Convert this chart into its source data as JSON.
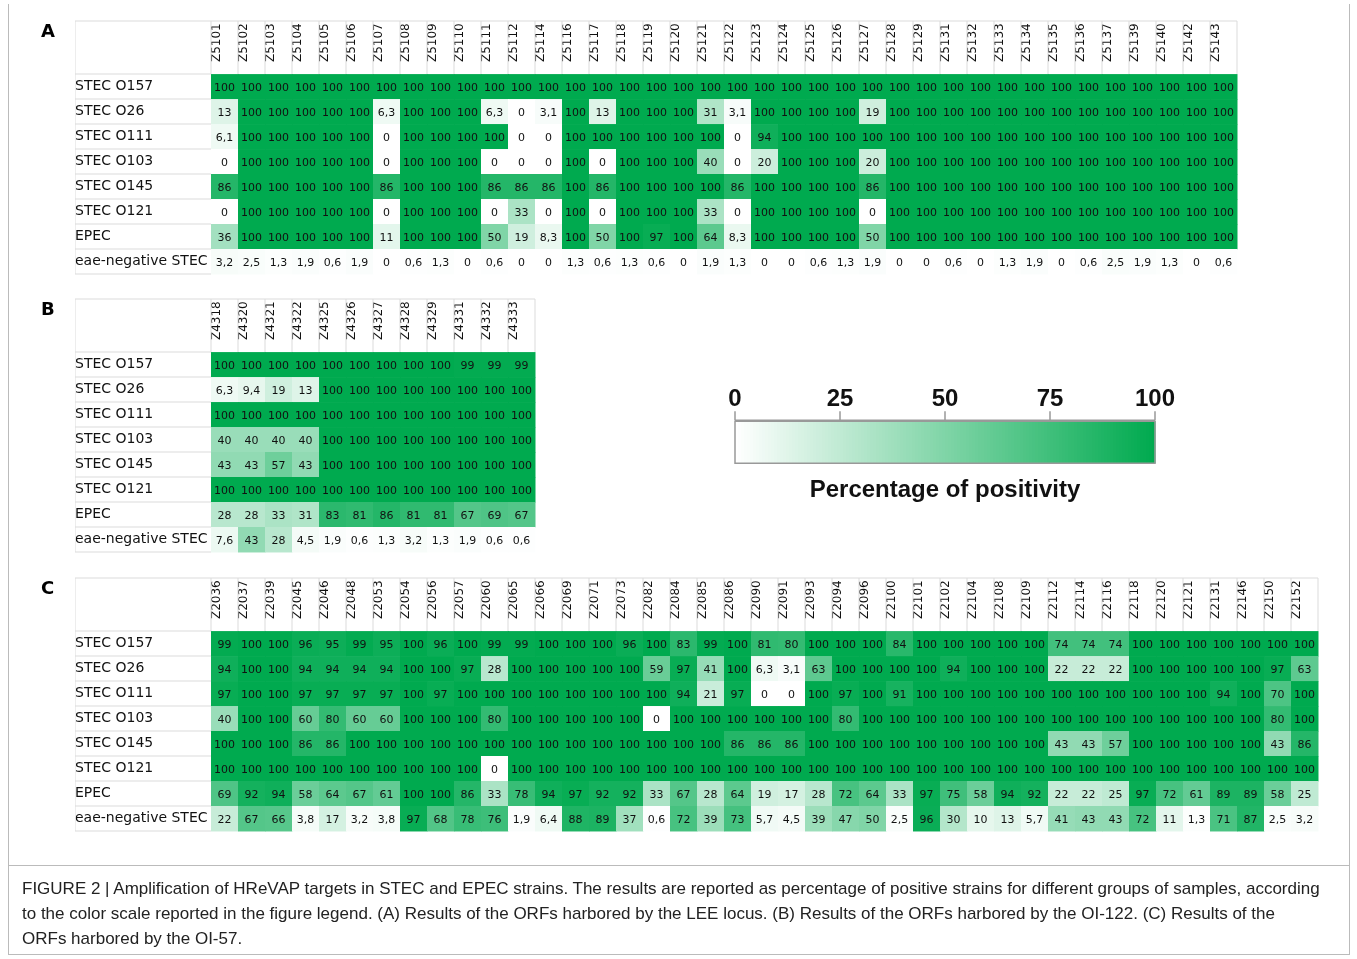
{
  "chart_data": [
    {
      "type": "heatmap",
      "title": "A",
      "categories": [
        "Z5101",
        "Z5102",
        "Z5103",
        "Z5104",
        "Z5105",
        "Z5106",
        "Z5107",
        "Z5108",
        "Z5109",
        "Z5110",
        "Z5111",
        "Z5112",
        "Z5114",
        "Z5116",
        "Z5117",
        "Z5118",
        "Z5119",
        "Z5120",
        "Z5121",
        "Z5122",
        "Z5123",
        "Z5124",
        "Z5125",
        "Z5126",
        "Z5127",
        "Z5128",
        "Z5129",
        "Z5131",
        "Z5132",
        "Z5133",
        "Z5134",
        "Z5135",
        "Z5136",
        "Z5137",
        "Z5139",
        "Z5140",
        "Z5142",
        "Z5143"
      ],
      "y_categories": [
        "STEC O157",
        "STEC O26",
        "STEC O111",
        "STEC O103",
        "STEC O145",
        "STEC O121",
        "EPEC",
        "eae-negative STEC"
      ],
      "cells": [
        [
          100,
          100,
          100,
          100,
          100,
          100,
          100,
          100,
          100,
          100,
          100,
          100,
          100,
          100,
          100,
          100,
          100,
          100,
          100,
          100,
          100,
          100,
          100,
          100,
          100,
          100,
          100,
          100,
          100,
          100,
          100,
          100,
          100,
          100,
          100,
          100,
          100,
          100
        ],
        [
          13,
          100,
          100,
          100,
          100,
          100,
          6.3,
          100,
          100,
          100,
          6.3,
          0,
          3.1,
          100,
          13,
          100,
          100,
          100,
          31,
          3.1,
          100,
          100,
          100,
          100,
          19,
          100,
          100,
          100,
          100,
          100,
          100,
          100,
          100,
          100,
          100,
          100,
          100,
          100
        ],
        [
          6.1,
          100,
          100,
          100,
          100,
          100,
          0,
          100,
          100,
          100,
          100,
          0,
          0,
          100,
          100,
          100,
          100,
          100,
          100,
          0,
          94,
          100,
          100,
          100,
          100,
          100,
          100,
          100,
          100,
          100,
          100,
          100,
          100,
          100,
          100,
          100,
          100,
          100
        ],
        [
          0,
          100,
          100,
          100,
          100,
          100,
          0,
          100,
          100,
          100,
          0,
          0,
          0,
          100,
          0,
          100,
          100,
          100,
          40,
          0,
          20,
          100,
          100,
          100,
          20,
          100,
          100,
          100,
          100,
          100,
          100,
          100,
          100,
          100,
          100,
          100,
          100,
          100
        ],
        [
          86,
          100,
          100,
          100,
          100,
          100,
          86,
          100,
          100,
          100,
          86,
          86,
          86,
          100,
          86,
          100,
          100,
          100,
          100,
          86,
          100,
          100,
          100,
          100,
          86,
          100,
          100,
          100,
          100,
          100,
          100,
          100,
          100,
          100,
          100,
          100,
          100,
          100
        ],
        [
          0,
          100,
          100,
          100,
          100,
          100,
          0,
          100,
          100,
          100,
          0,
          33,
          0,
          100,
          0,
          100,
          100,
          100,
          33,
          0,
          100,
          100,
          100,
          100,
          0,
          100,
          100,
          100,
          100,
          100,
          100,
          100,
          100,
          100,
          100,
          100,
          100,
          100
        ],
        [
          36,
          100,
          100,
          100,
          100,
          100,
          11,
          100,
          100,
          100,
          50,
          19,
          8.3,
          100,
          50,
          100,
          97,
          100,
          64,
          8.3,
          100,
          100,
          100,
          100,
          50,
          100,
          100,
          100,
          100,
          100,
          100,
          100,
          100,
          100,
          100,
          100,
          100,
          100
        ],
        [
          3.2,
          2.5,
          1.3,
          1.9,
          0.6,
          1.9,
          0,
          0.6,
          1.3,
          0,
          0.6,
          0,
          0,
          1.3,
          0.6,
          1.3,
          0.6,
          0,
          1.9,
          1.3,
          0,
          0,
          0.6,
          1.3,
          1.9,
          0,
          0,
          0.6,
          0,
          1.3,
          1.9,
          0,
          0.6,
          2.5,
          1.9,
          1.3,
          0,
          0.6
        ]
      ],
      "cell_labels": [
        [
          "100",
          "100",
          "100",
          "100",
          "100",
          "100",
          "100",
          "100",
          "100",
          "100",
          "100",
          "100",
          "100",
          "100",
          "100",
          "100",
          "100",
          "100",
          "100",
          "100",
          "100",
          "100",
          "100",
          "100",
          "100",
          "100",
          "100",
          "100",
          "100",
          "100",
          "100",
          "100",
          "100",
          "100",
          "100",
          "100",
          "100",
          "100"
        ],
        [
          "13",
          "100",
          "100",
          "100",
          "100",
          "100",
          "6,3",
          "100",
          "100",
          "100",
          "6,3",
          "0",
          "3,1",
          "100",
          "13",
          "100",
          "100",
          "100",
          "31",
          "3,1",
          "100",
          "100",
          "100",
          "100",
          "19",
          "100",
          "100",
          "100",
          "100",
          "100",
          "100",
          "100",
          "100",
          "100",
          "100",
          "100",
          "100",
          "100"
        ],
        [
          "6,1",
          "100",
          "100",
          "100",
          "100",
          "100",
          "0",
          "100",
          "100",
          "100",
          "100",
          "0",
          "0",
          "100",
          "100",
          "100",
          "100",
          "100",
          "100",
          "0",
          "94",
          "100",
          "100",
          "100",
          "100",
          "100",
          "100",
          "100",
          "100",
          "100",
          "100",
          "100",
          "100",
          "100",
          "100",
          "100",
          "100",
          "100"
        ],
        [
          "0",
          "100",
          "100",
          "100",
          "100",
          "100",
          "0",
          "100",
          "100",
          "100",
          "0",
          "0",
          "0",
          "100",
          "0",
          "100",
          "100",
          "100",
          "40",
          "0",
          "20",
          "100",
          "100",
          "100",
          "20",
          "100",
          "100",
          "100",
          "100",
          "100",
          "100",
          "100",
          "100",
          "100",
          "100",
          "100",
          "100",
          "100"
        ],
        [
          "86",
          "100",
          "100",
          "100",
          "100",
          "100",
          "86",
          "100",
          "100",
          "100",
          "86",
          "86",
          "86",
          "100",
          "86",
          "100",
          "100",
          "100",
          "100",
          "86",
          "100",
          "100",
          "100",
          "100",
          "86",
          "100",
          "100",
          "100",
          "100",
          "100",
          "100",
          "100",
          "100",
          "100",
          "100",
          "100",
          "100",
          "100"
        ],
        [
          "0",
          "100",
          "100",
          "100",
          "100",
          "100",
          "0",
          "100",
          "100",
          "100",
          "0",
          "33",
          "0",
          "100",
          "0",
          "100",
          "100",
          "100",
          "33",
          "0",
          "100",
          "100",
          "100",
          "100",
          "0",
          "100",
          "100",
          "100",
          "100",
          "100",
          "100",
          "100",
          "100",
          "100",
          "100",
          "100",
          "100",
          "100"
        ],
        [
          "36",
          "100",
          "100",
          "100",
          "100",
          "100",
          "11",
          "100",
          "100",
          "100",
          "50",
          "19",
          "8,3",
          "100",
          "50",
          "100",
          "97",
          "100",
          "64",
          "8,3",
          "100",
          "100",
          "100",
          "100",
          "50",
          "100",
          "100",
          "100",
          "100",
          "100",
          "100",
          "100",
          "100",
          "100",
          "100",
          "100",
          "100",
          "100"
        ],
        [
          "3,2",
          "2,5",
          "1,3",
          "1,9",
          "0,6",
          "1,9",
          "0",
          "0,6",
          "1,3",
          "0",
          "0,6",
          "0",
          "0",
          "1,3",
          "0,6",
          "1,3",
          "0,6",
          "0",
          "1,9",
          "1,3",
          "0",
          "0",
          "0,6",
          "1,3",
          "1,9",
          "0",
          "0",
          "0,6",
          "0",
          "1,3",
          "1,9",
          "0",
          "0,6",
          "2,5",
          "1,9",
          "1,3",
          "0",
          "0,6"
        ]
      ]
    },
    {
      "type": "heatmap",
      "title": "B",
      "clim": [
        0,
        100
      ],
      "cticks": [
        0,
        25,
        50,
        75,
        100
      ],
      "clabel": "Percentage of positivity",
      "categories": [
        "Z4318",
        "Z4320",
        "Z4321",
        "Z4322",
        "Z4325",
        "Z4326",
        "Z4327",
        "Z4328",
        "Z4329",
        "Z4331",
        "Z4332",
        "Z4333"
      ],
      "y_categories": [
        "STEC O157",
        "STEC O26",
        "STEC O111",
        "STEC O103",
        "STEC O145",
        "STEC O121",
        "EPEC",
        "eae-negative STEC"
      ],
      "cells": [
        [
          100,
          100,
          100,
          100,
          100,
          100,
          100,
          100,
          100,
          99,
          99,
          99
        ],
        [
          6.3,
          9.4,
          19,
          13,
          100,
          100,
          100,
          100,
          100,
          100,
          100,
          100
        ],
        [
          100,
          100,
          100,
          100,
          100,
          100,
          100,
          100,
          100,
          100,
          100,
          100
        ],
        [
          40,
          40,
          40,
          40,
          100,
          100,
          100,
          100,
          100,
          100,
          100,
          100
        ],
        [
          43,
          43,
          57,
          43,
          100,
          100,
          100,
          100,
          100,
          100,
          100,
          100
        ],
        [
          100,
          100,
          100,
          100,
          100,
          100,
          100,
          100,
          100,
          100,
          100,
          100
        ],
        [
          28,
          28,
          33,
          31,
          83,
          81,
          86,
          81,
          81,
          67,
          69,
          67
        ],
        [
          7.6,
          43,
          28,
          4.5,
          1.9,
          0.6,
          1.3,
          3.2,
          1.3,
          1.9,
          0.6,
          0.6
        ]
      ],
      "cell_labels": [
        [
          "100",
          "100",
          "100",
          "100",
          "100",
          "100",
          "100",
          "100",
          "100",
          "99",
          "99",
          "99"
        ],
        [
          "6,3",
          "9,4",
          "19",
          "13",
          "100",
          "100",
          "100",
          "100",
          "100",
          "100",
          "100",
          "100"
        ],
        [
          "100",
          "100",
          "100",
          "100",
          "100",
          "100",
          "100",
          "100",
          "100",
          "100",
          "100",
          "100"
        ],
        [
          "40",
          "40",
          "40",
          "40",
          "100",
          "100",
          "100",
          "100",
          "100",
          "100",
          "100",
          "100"
        ],
        [
          "43",
          "43",
          "57",
          "43",
          "100",
          "100",
          "100",
          "100",
          "100",
          "100",
          "100",
          "100"
        ],
        [
          "100",
          "100",
          "100",
          "100",
          "100",
          "100",
          "100",
          "100",
          "100",
          "100",
          "100",
          "100"
        ],
        [
          "28",
          "28",
          "33",
          "31",
          "83",
          "81",
          "86",
          "81",
          "81",
          "67",
          "69",
          "67"
        ],
        [
          "7,6",
          "43",
          "28",
          "4,5",
          "1,9",
          "0,6",
          "1,3",
          "3,2",
          "1,3",
          "1,9",
          "0,6",
          "0,6"
        ]
      ]
    },
    {
      "type": "heatmap",
      "title": "C",
      "categories": [
        "Z2036",
        "Z2037",
        "Z2039",
        "Z2045",
        "Z2046",
        "Z2048",
        "Z2053",
        "Z2054",
        "Z2056",
        "Z2057",
        "Z2060",
        "Z2065",
        "Z2066",
        "Z2069",
        "Z2071",
        "Z2073",
        "Z2082",
        "Z2084",
        "Z2085",
        "Z2086",
        "Z2090",
        "Z2091",
        "Z2093",
        "Z2094",
        "Z2096",
        "Z2100",
        "Z2101",
        "Z2102",
        "Z2104",
        "Z2108",
        "Z2109",
        "Z2112",
        "Z2114",
        "Z2116",
        "Z2118",
        "Z2120",
        "Z2121",
        "Z2131",
        "Z2146",
        "Z2150",
        "Z2152"
      ],
      "y_categories": [
        "STEC O157",
        "STEC O26",
        "STEC O111",
        "STEC O103",
        "STEC O145",
        "STEC O121",
        "EPEC",
        "eae-negative STEC"
      ],
      "cells": [
        [
          99,
          100,
          100,
          96,
          95,
          99,
          95,
          100,
          96,
          100,
          99,
          99,
          100,
          100,
          100,
          96,
          100,
          83,
          99,
          100,
          81,
          80,
          100,
          100,
          100,
          84,
          100,
          100,
          100,
          100,
          100,
          74,
          74,
          74,
          100,
          100,
          100,
          100,
          100,
          100,
          100
        ],
        [
          94,
          100,
          100,
          94,
          94,
          94,
          94,
          100,
          100,
          97,
          28,
          100,
          100,
          100,
          100,
          100,
          59,
          97,
          41,
          100,
          6.3,
          3.1,
          63,
          100,
          100,
          100,
          100,
          94,
          100,
          100,
          100,
          22,
          22,
          22,
          100,
          100,
          100,
          100,
          100,
          97,
          63
        ],
        [
          97,
          100,
          100,
          97,
          97,
          97,
          97,
          100,
          97,
          100,
          100,
          100,
          100,
          100,
          100,
          100,
          100,
          94,
          21,
          97,
          0,
          0,
          100,
          97,
          100,
          91,
          100,
          100,
          100,
          100,
          100,
          100,
          100,
          100,
          100,
          100,
          100,
          94,
          100,
          70,
          100
        ],
        [
          40,
          100,
          100,
          60,
          80,
          60,
          60,
          100,
          100,
          100,
          80,
          100,
          100,
          100,
          100,
          100,
          0,
          100,
          100,
          100,
          100,
          100,
          100,
          80,
          100,
          100,
          100,
          100,
          100,
          100,
          100,
          100,
          100,
          100,
          100,
          100,
          100,
          100,
          100,
          80,
          100
        ],
        [
          100,
          100,
          100,
          86,
          86,
          100,
          100,
          100,
          100,
          100,
          100,
          100,
          100,
          100,
          100,
          100,
          100,
          100,
          100,
          86,
          86,
          86,
          100,
          100,
          100,
          100,
          100,
          100,
          100,
          100,
          100,
          43,
          43,
          57,
          100,
          100,
          100,
          100,
          100,
          43,
          86
        ],
        [
          100,
          100,
          100,
          100,
          100,
          100,
          100,
          100,
          100,
          100,
          0,
          100,
          100,
          100,
          100,
          100,
          100,
          100,
          100,
          100,
          100,
          100,
          100,
          100,
          100,
          100,
          100,
          100,
          100,
          100,
          100,
          100,
          100,
          100,
          100,
          100,
          100,
          100,
          100,
          100,
          100
        ],
        [
          69,
          92,
          94,
          58,
          64,
          67,
          61,
          100,
          100,
          86,
          33,
          78,
          94,
          97,
          92,
          92,
          33,
          67,
          28,
          64,
          19,
          17,
          28,
          72,
          64,
          33,
          97,
          75,
          58,
          94,
          92,
          22,
          22,
          25,
          97,
          72,
          61,
          89,
          89,
          58,
          25
        ],
        [
          22,
          67,
          66,
          3.8,
          17,
          3.2,
          3.8,
          97,
          68,
          78,
          76,
          1.9,
          6.4,
          88,
          89,
          37,
          0.6,
          72,
          39,
          73,
          5.7,
          4.5,
          39,
          47,
          50,
          2.5,
          96,
          30,
          10,
          13,
          5.7,
          41,
          43,
          43,
          72,
          11,
          1.3,
          71,
          87,
          2.5,
          3.2
        ]
      ],
      "cell_labels": [
        [
          "99",
          "100",
          "100",
          "96",
          "95",
          "99",
          "95",
          "100",
          "96",
          "100",
          "99",
          "99",
          "100",
          "100",
          "100",
          "96",
          "100",
          "83",
          "99",
          "100",
          "81",
          "80",
          "100",
          "100",
          "100",
          "84",
          "100",
          "100",
          "100",
          "100",
          "100",
          "74",
          "74",
          "74",
          "100",
          "100",
          "100",
          "100",
          "100",
          "100",
          "100"
        ],
        [
          "94",
          "100",
          "100",
          "94",
          "94",
          "94",
          "94",
          "100",
          "100",
          "97",
          "28",
          "100",
          "100",
          "100",
          "100",
          "100",
          "59",
          "97",
          "41",
          "100",
          "6,3",
          "3,1",
          "63",
          "100",
          "100",
          "100",
          "100",
          "94",
          "100",
          "100",
          "100",
          "22",
          "22",
          "22",
          "100",
          "100",
          "100",
          "100",
          "100",
          "97",
          "63"
        ],
        [
          "97",
          "100",
          "100",
          "97",
          "97",
          "97",
          "97",
          "100",
          "97",
          "100",
          "100",
          "100",
          "100",
          "100",
          "100",
          "100",
          "100",
          "94",
          "21",
          "97",
          "0",
          "0",
          "100",
          "97",
          "100",
          "91",
          "100",
          "100",
          "100",
          "100",
          "100",
          "100",
          "100",
          "100",
          "100",
          "100",
          "100",
          "94",
          "100",
          "70",
          "100"
        ],
        [
          "40",
          "100",
          "100",
          "60",
          "80",
          "60",
          "60",
          "100",
          "100",
          "100",
          "80",
          "100",
          "100",
          "100",
          "100",
          "100",
          "0",
          "100",
          "100",
          "100",
          "100",
          "100",
          "100",
          "80",
          "100",
          "100",
          "100",
          "100",
          "100",
          "100",
          "100",
          "100",
          "100",
          "100",
          "100",
          "100",
          "100",
          "100",
          "100",
          "80",
          "100"
        ],
        [
          "100",
          "100",
          "100",
          "86",
          "86",
          "100",
          "100",
          "100",
          "100",
          "100",
          "100",
          "100",
          "100",
          "100",
          "100",
          "100",
          "100",
          "100",
          "100",
          "86",
          "86",
          "86",
          "100",
          "100",
          "100",
          "100",
          "100",
          "100",
          "100",
          "100",
          "100",
          "43",
          "43",
          "57",
          "100",
          "100",
          "100",
          "100",
          "100",
          "43",
          "86"
        ],
        [
          "100",
          "100",
          "100",
          "100",
          "100",
          "100",
          "100",
          "100",
          "100",
          "100",
          "0",
          "100",
          "100",
          "100",
          "100",
          "100",
          "100",
          "100",
          "100",
          "100",
          "100",
          "100",
          "100",
          "100",
          "100",
          "100",
          "100",
          "100",
          "100",
          "100",
          "100",
          "100",
          "100",
          "100",
          "100",
          "100",
          "100",
          "100",
          "100",
          "100",
          "100"
        ],
        [
          "69",
          "92",
          "94",
          "58",
          "64",
          "67",
          "61",
          "100",
          "100",
          "86",
          "33",
          "78",
          "94",
          "97",
          "92",
          "92",
          "33",
          "67",
          "28",
          "64",
          "19",
          "17",
          "28",
          "72",
          "64",
          "33",
          "97",
          "75",
          "58",
          "94",
          "92",
          "22",
          "22",
          "25",
          "97",
          "72",
          "61",
          "89",
          "89",
          "58",
          "25"
        ],
        [
          "22",
          "67",
          "66",
          "3,8",
          "17",
          "3,2",
          "3,8",
          "97",
          "68",
          "78",
          "76",
          "1,9",
          "6,4",
          "88",
          "89",
          "37",
          "0,6",
          "72",
          "39",
          "73",
          "5,7",
          "4,5",
          "39",
          "47",
          "50",
          "2,5",
          "96",
          "30",
          "10",
          "13",
          "5,7",
          "41",
          "43",
          "43",
          "72",
          "11",
          "1,3",
          "71",
          "87",
          "2,5",
          "3,2"
        ]
      ],
      "annotations": [
        "FIGURE 2 | Amplification of HReVAP targets in STEC and EPEC strains. The results are reported as percentage of positive strains for different groups of samples, according to the color scale reported in the figure legend. (A) Results of the ORFs harbored by the LEE locus. (B) Results of the ORFs harbored by the OI-122. (C) Results of the ORFs harbored by the OI-57."
      ]
    }
  ]
}
